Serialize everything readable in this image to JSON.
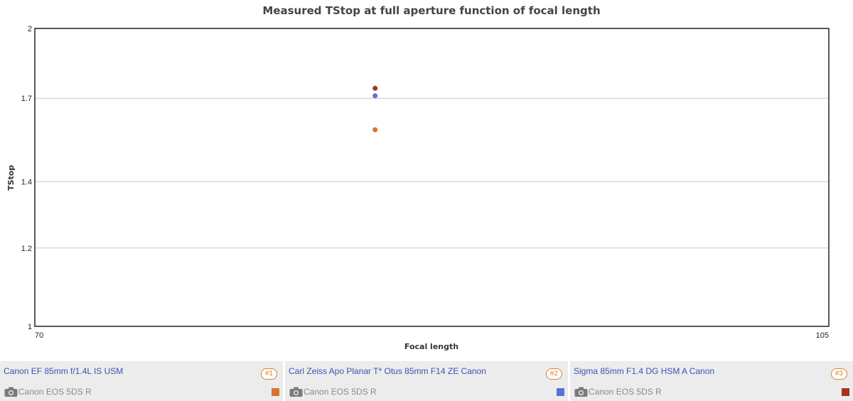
{
  "chart_data": {
    "type": "scatter",
    "title": "Measured TStop at full aperture function of focal length",
    "xlabel": "Focal length",
    "ylabel": "TStop",
    "xlim": [
      70,
      105
    ],
    "ylim": [
      1,
      2
    ],
    "y_scale": "log",
    "x_ticks": [
      "70",
      "105"
    ],
    "y_ticks": [
      {
        "value": 2,
        "label": "2"
      },
      {
        "value": 1.7,
        "label": "1.7"
      },
      {
        "value": 1.4,
        "label": "1.4"
      },
      {
        "value": 1.2,
        "label": "1.2"
      },
      {
        "value": 1,
        "label": "1"
      }
    ],
    "grid": "horizontal",
    "series": [
      {
        "name": "Canon EF 85mm f/1.4L IS USM",
        "color": "#d9732f",
        "points": [
          {
            "x": 85,
            "y": 1.58
          }
        ]
      },
      {
        "name": "Carl Zeiss Apo Planar T* Otus 85mm F14 ZE Canon",
        "color": "#5a72d6",
        "points": [
          {
            "x": 85,
            "y": 1.71
          }
        ]
      },
      {
        "name": "Sigma 85mm F1.4 DG HSM A Canon",
        "color": "#a6321f",
        "points": [
          {
            "x": 85,
            "y": 1.74
          }
        ]
      }
    ]
  },
  "legend": [
    {
      "lens": "Canon EF 85mm f/1.4L IS USM",
      "badge": "#1",
      "camera": "Canon EOS 5DS R",
      "color": "#d9732f",
      "camera_icon": "camera-icon"
    },
    {
      "lens": "Carl Zeiss Apo Planar T* Otus 85mm F14 ZE Canon",
      "badge": "#2",
      "camera": "Canon EOS 5DS R",
      "color": "#5a72d6",
      "camera_icon": "camera-icon"
    },
    {
      "lens": "Sigma 85mm F1.4 DG HSM A Canon",
      "badge": "#3",
      "camera": "Canon EOS 5DS R",
      "color": "#a6321f",
      "camera_icon": "camera-icon"
    }
  ]
}
